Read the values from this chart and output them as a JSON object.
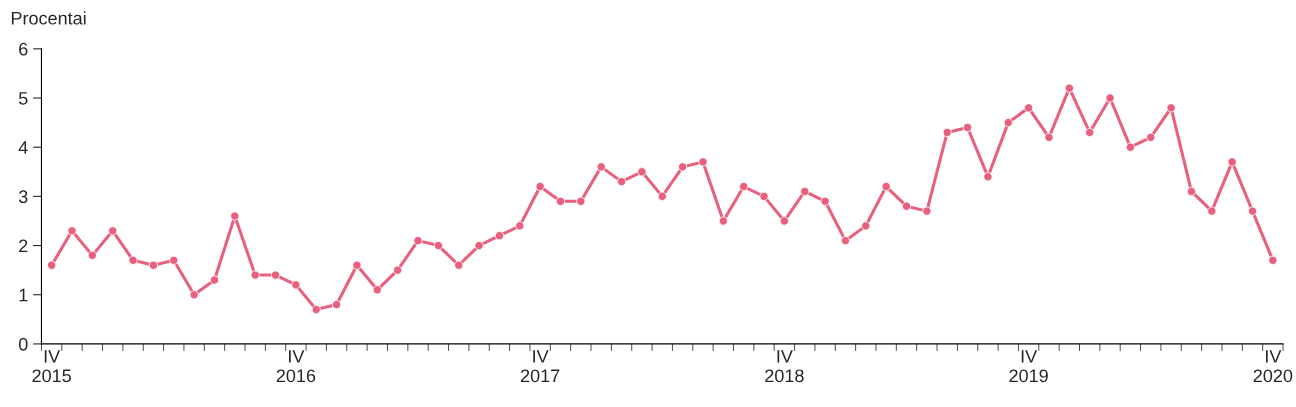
{
  "chart_data": {
    "type": "line",
    "ylabel": "Procentai",
    "categories": [
      "IV\n2015",
      null,
      null,
      null,
      null,
      null,
      null,
      null,
      null,
      null,
      null,
      null,
      "IV\n2016",
      null,
      null,
      null,
      null,
      null,
      null,
      null,
      null,
      null,
      null,
      null,
      "IV\n2017",
      null,
      null,
      null,
      null,
      null,
      null,
      null,
      null,
      null,
      null,
      null,
      "IV\n2018",
      null,
      null,
      null,
      null,
      null,
      null,
      null,
      null,
      null,
      null,
      null,
      "IV\n2019",
      null,
      null,
      null,
      null,
      null,
      null,
      null,
      null,
      null,
      null,
      null,
      "IV\n2020"
    ],
    "series": [
      {
        "color": "#e8607e",
        "values": [
          1.6,
          2.3,
          1.8,
          2.3,
          1.7,
          1.6,
          1.7,
          1.0,
          1.3,
          2.6,
          1.4,
          1.4,
          1.2,
          0.7,
          0.8,
          1.6,
          1.1,
          1.5,
          2.1,
          2.0,
          1.6,
          2.0,
          2.2,
          2.4,
          3.2,
          2.9,
          2.9,
          3.6,
          3.3,
          3.5,
          3.0,
          3.6,
          3.7,
          2.5,
          3.2,
          3.0,
          2.5,
          3.1,
          2.9,
          2.1,
          2.4,
          3.2,
          2.8,
          2.7,
          4.3,
          4.4,
          3.4,
          4.5,
          4.8,
          4.2,
          5.2,
          4.3,
          5.0,
          4.0,
          4.2,
          4.8,
          3.1,
          2.7,
          3.7,
          2.7,
          1.7
        ]
      }
    ],
    "ylim": [
      0,
      6
    ],
    "yticks": [
      0,
      1,
      2,
      3,
      4,
      5,
      6
    ],
    "grid": false,
    "legend": false,
    "marker": "circle",
    "line_style": "solid"
  }
}
